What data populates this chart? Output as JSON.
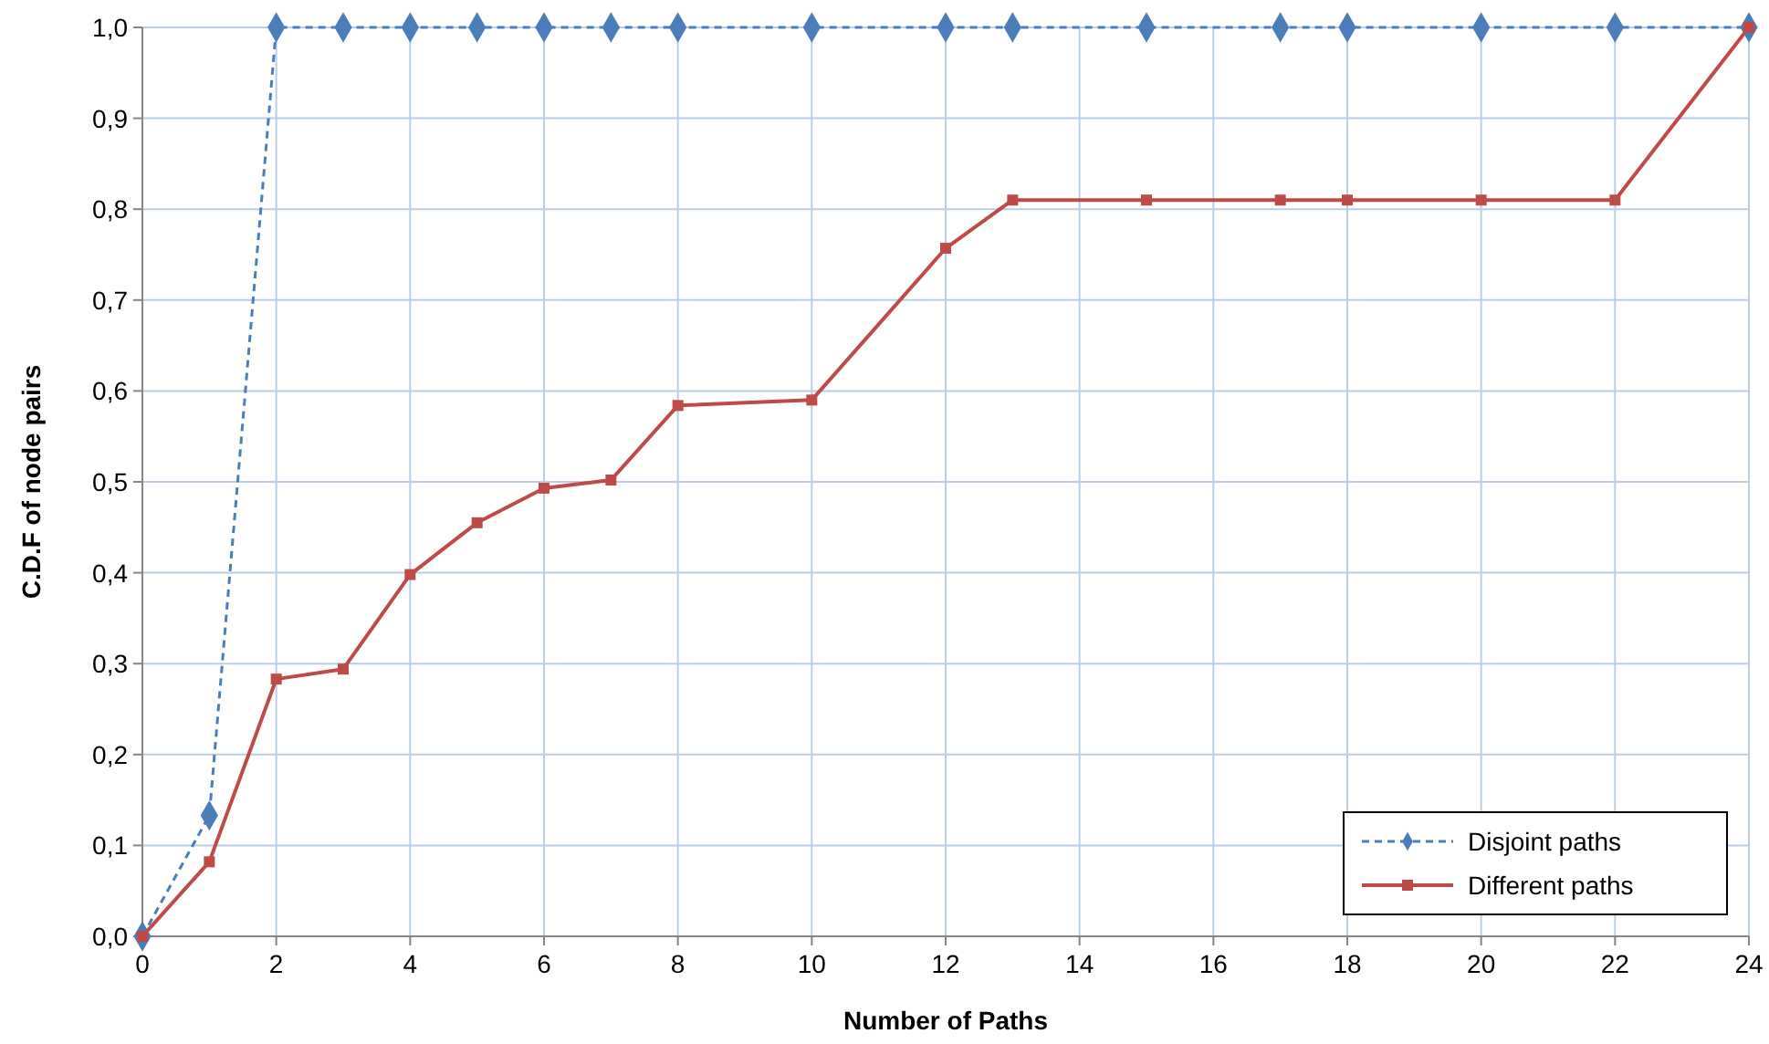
{
  "chart_data": {
    "type": "line",
    "xlabel": "Number  of  Paths",
    "ylabel": "C.D.F  of  node  pairs",
    "x": [
      0,
      1,
      2,
      3,
      4,
      5,
      6,
      7,
      8,
      10,
      12,
      13,
      15,
      17,
      18,
      20,
      22,
      24
    ],
    "series": [
      {
        "name": "Disjoint paths",
        "color": "#4a7ebb",
        "marker": "diamond",
        "line_style": "dashed",
        "values": [
          0,
          0.133,
          1,
          1,
          1,
          1,
          1,
          1,
          1,
          1,
          1,
          1,
          1,
          1,
          1,
          1,
          1,
          1
        ]
      },
      {
        "name": "Different paths",
        "color": "#be4b48",
        "marker": "square",
        "line_style": "solid",
        "values": [
          0,
          0.082,
          0.283,
          0.294,
          0.398,
          0.455,
          0.493,
          0.502,
          0.584,
          0.59,
          0.757,
          0.81,
          0.81,
          0.81,
          0.81,
          0.81,
          0.81,
          1
        ]
      }
    ],
    "xlim": [
      0,
      24
    ],
    "xticks": [
      0,
      2,
      4,
      6,
      8,
      10,
      12,
      14,
      16,
      18,
      20,
      22,
      24
    ],
    "ylim": [
      0,
      1
    ],
    "yticks": [
      {
        "value": 0,
        "label": "0,0"
      },
      {
        "value": 0.1,
        "label": "0,1"
      },
      {
        "value": 0.2,
        "label": "0,2"
      },
      {
        "value": 0.3,
        "label": "0,3"
      },
      {
        "value": 0.4,
        "label": "0,4"
      },
      {
        "value": 0.5,
        "label": "0,5"
      },
      {
        "value": 0.6,
        "label": "0,6"
      },
      {
        "value": 0.7,
        "label": "0,7"
      },
      {
        "value": 0.8,
        "label": "0,8"
      },
      {
        "value": 0.9,
        "label": "0,9"
      },
      {
        "value": 1,
        "label": "1,0"
      }
    ],
    "grid": true,
    "legend": "bottom right"
  }
}
